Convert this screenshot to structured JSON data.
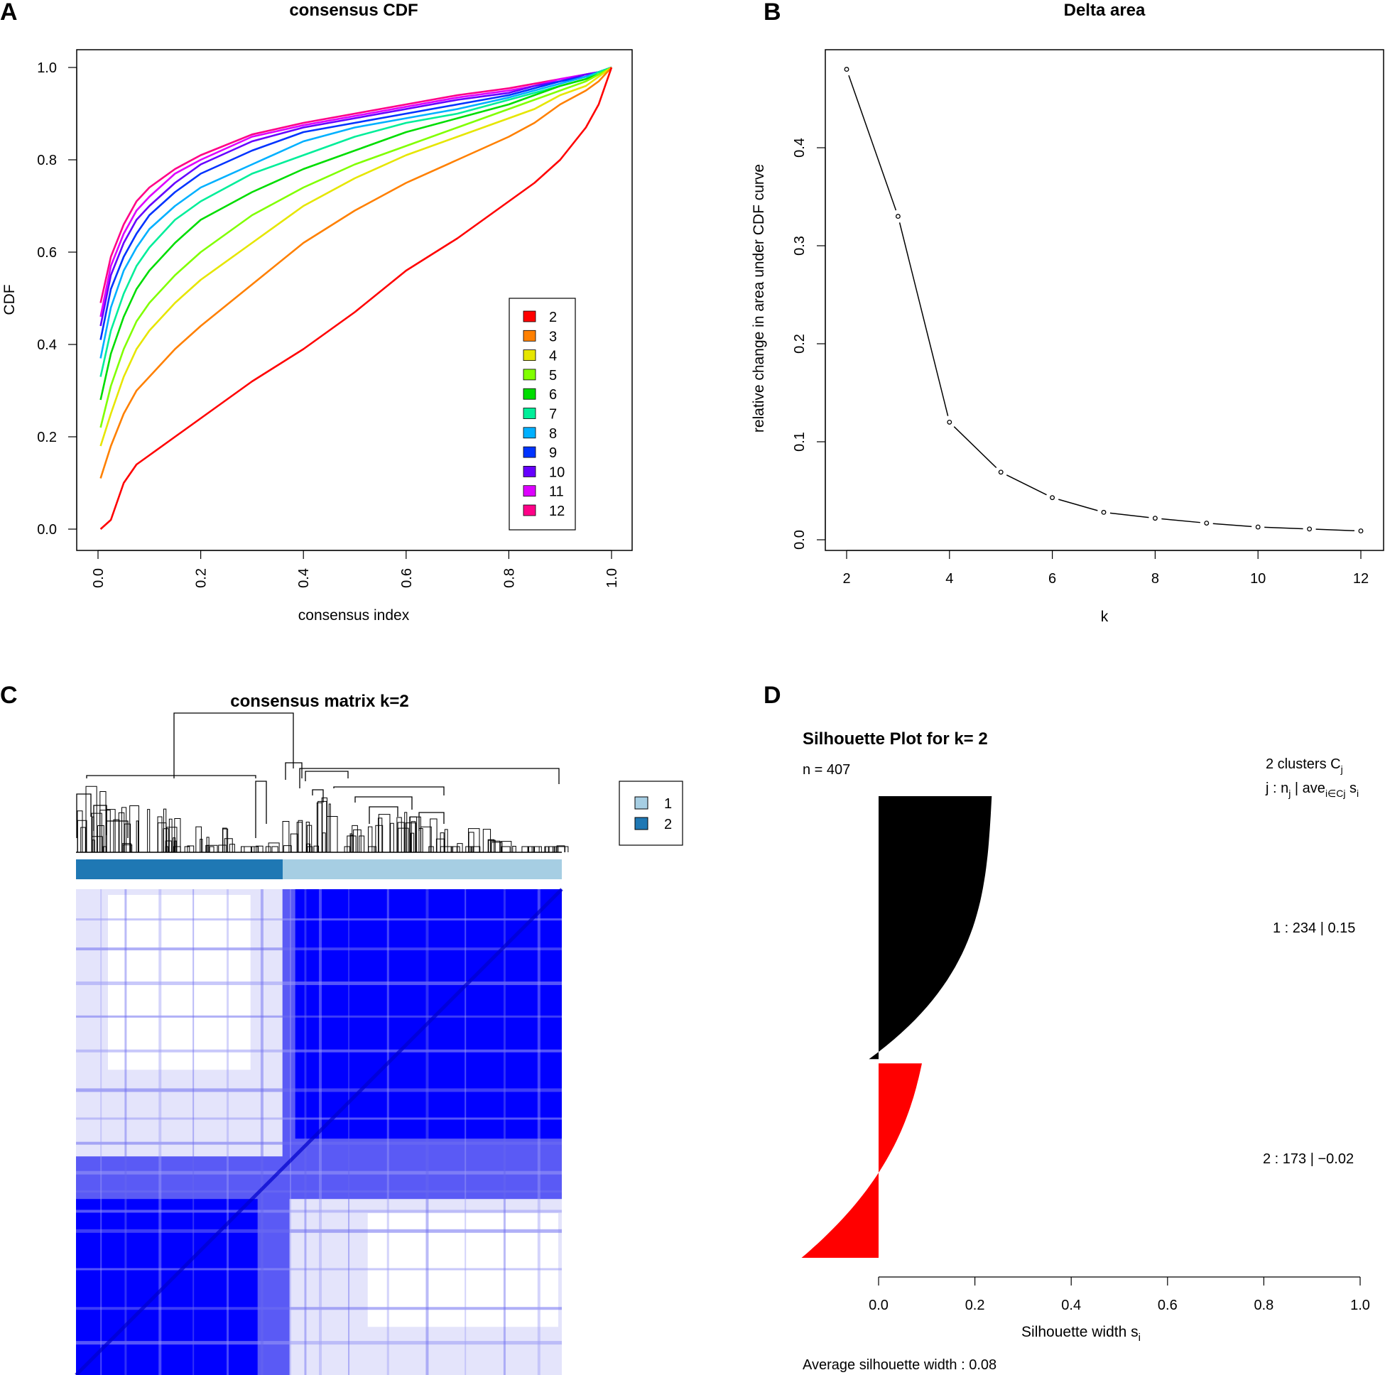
{
  "figure": {
    "panels": {
      "a": "A",
      "b": "B",
      "c": "C",
      "d": "D"
    }
  },
  "chart_data": [
    {
      "id": "consensus-cdf",
      "type": "line",
      "title": "consensus CDF",
      "xlabel": "consensus index",
      "ylabel": "CDF",
      "xlim": [
        0,
        1
      ],
      "ylim": [
        0,
        1
      ],
      "xticks": [
        "0.0",
        "0.2",
        "0.4",
        "0.6",
        "0.8",
        "1.0"
      ],
      "yticks": [
        "0.0",
        "0.2",
        "0.4",
        "0.6",
        "0.8",
        "1.0"
      ],
      "legend_position": "bottom-right",
      "x": [
        0,
        0.025,
        0.05,
        0.075,
        0.1,
        0.15,
        0.2,
        0.3,
        0.4,
        0.5,
        0.6,
        0.7,
        0.8,
        0.85,
        0.9,
        0.95,
        0.975,
        1.0
      ],
      "series": [
        {
          "name": "2",
          "color": "#ff0000",
          "values": [
            0.0,
            0.02,
            0.1,
            0.14,
            0.16,
            0.2,
            0.24,
            0.32,
            0.39,
            0.47,
            0.56,
            0.63,
            0.71,
            0.75,
            0.8,
            0.87,
            0.92,
            1.0
          ]
        },
        {
          "name": "3",
          "color": "#ff8000",
          "values": [
            0.11,
            0.18,
            0.25,
            0.3,
            0.33,
            0.39,
            0.44,
            0.53,
            0.62,
            0.69,
            0.75,
            0.8,
            0.85,
            0.88,
            0.92,
            0.95,
            0.97,
            1.0
          ]
        },
        {
          "name": "4",
          "color": "#e6e600",
          "values": [
            0.18,
            0.25,
            0.33,
            0.39,
            0.43,
            0.49,
            0.54,
            0.62,
            0.7,
            0.76,
            0.81,
            0.85,
            0.89,
            0.91,
            0.94,
            0.96,
            0.98,
            1.0
          ]
        },
        {
          "name": "5",
          "color": "#80ff00",
          "values": [
            0.22,
            0.31,
            0.39,
            0.45,
            0.49,
            0.55,
            0.6,
            0.68,
            0.74,
            0.79,
            0.83,
            0.87,
            0.91,
            0.93,
            0.95,
            0.97,
            0.985,
            1.0
          ]
        },
        {
          "name": "6",
          "color": "#00dd00",
          "values": [
            0.28,
            0.38,
            0.46,
            0.52,
            0.56,
            0.62,
            0.67,
            0.73,
            0.78,
            0.82,
            0.86,
            0.89,
            0.92,
            0.94,
            0.96,
            0.975,
            0.985,
            1.0
          ]
        },
        {
          "name": "7",
          "color": "#00ee99",
          "values": [
            0.33,
            0.43,
            0.51,
            0.57,
            0.61,
            0.67,
            0.71,
            0.77,
            0.81,
            0.85,
            0.88,
            0.9,
            0.93,
            0.945,
            0.96,
            0.975,
            0.99,
            1.0
          ]
        },
        {
          "name": "8",
          "color": "#00b0ff",
          "values": [
            0.37,
            0.48,
            0.56,
            0.61,
            0.65,
            0.7,
            0.74,
            0.79,
            0.84,
            0.87,
            0.89,
            0.91,
            0.935,
            0.95,
            0.965,
            0.98,
            0.99,
            1.0
          ]
        },
        {
          "name": "9",
          "color": "#0033ff",
          "values": [
            0.41,
            0.52,
            0.59,
            0.64,
            0.68,
            0.73,
            0.77,
            0.82,
            0.86,
            0.88,
            0.9,
            0.92,
            0.94,
            0.955,
            0.97,
            0.98,
            0.99,
            1.0
          ]
        },
        {
          "name": "10",
          "color": "#6600ff",
          "values": [
            0.44,
            0.55,
            0.62,
            0.67,
            0.7,
            0.75,
            0.79,
            0.84,
            0.87,
            0.89,
            0.91,
            0.93,
            0.945,
            0.96,
            0.97,
            0.985,
            0.99,
            1.0
          ]
        },
        {
          "name": "11",
          "color": "#dd00ff",
          "values": [
            0.46,
            0.57,
            0.64,
            0.69,
            0.72,
            0.77,
            0.8,
            0.85,
            0.875,
            0.895,
            0.915,
            0.935,
            0.95,
            0.96,
            0.975,
            0.985,
            0.99,
            1.0
          ]
        },
        {
          "name": "12",
          "color": "#ff0088",
          "values": [
            0.49,
            0.59,
            0.66,
            0.71,
            0.74,
            0.78,
            0.81,
            0.855,
            0.88,
            0.9,
            0.92,
            0.94,
            0.955,
            0.965,
            0.975,
            0.985,
            0.99,
            1.0
          ]
        }
      ]
    },
    {
      "id": "delta-area",
      "type": "line",
      "title": "Delta area",
      "xlabel": "k",
      "ylabel": "relative change in area under CDF curve",
      "xlim": [
        1.8,
        12.4
      ],
      "ylim": [
        -0.01,
        0.5
      ],
      "xticks": [
        "2",
        "4",
        "6",
        "8",
        "10",
        "12"
      ],
      "yticks": [
        "0.0",
        "0.1",
        "0.2",
        "0.3",
        "0.4"
      ],
      "x": [
        2,
        3,
        4,
        5,
        6,
        7,
        8,
        9,
        10,
        11,
        12
      ],
      "values": [
        0.48,
        0.33,
        0.12,
        0.069,
        0.043,
        0.028,
        0.022,
        0.017,
        0.013,
        0.011,
        0.009
      ]
    },
    {
      "id": "consensus-matrix",
      "type": "heatmap",
      "title": "consensus matrix k=2",
      "legend": [
        "1",
        "2"
      ],
      "legend_colors": [
        "#a6cee3",
        "#1f78b4"
      ],
      "cluster_fraction_col2": 0.425,
      "colors": {
        "high": "#0000ff",
        "mid": "#5a5af5",
        "low": "#e4e4fb",
        "zero": "#ffffff"
      }
    },
    {
      "id": "silhouette",
      "type": "bar",
      "title": "Silhouette Plot for k= 2",
      "n_label": "n = 407",
      "header_line1": "2  clusters  C",
      "header_line1_sub": "j",
      "header_line2_a": "j :  n",
      "header_line2_sub1": "j",
      "header_line2_b": " | ave",
      "header_line2_sub2": "i∈Cj",
      "header_line2_c": "  s",
      "header_line2_sub3": "i",
      "xlabel": "Silhouette width s",
      "xlabel_sub": "i",
      "xlim": [
        -0.16,
        1.0
      ],
      "xticks": [
        "0.0",
        "0.2",
        "0.4",
        "0.6",
        "0.8",
        "1.0"
      ],
      "average_label": "Average silhouette width :  0.08",
      "clusters": [
        {
          "label": "1 :   234  |  0.15",
          "n": 234,
          "ave": 0.15,
          "color": "#000000",
          "max": 0.235,
          "min": 0.01
        },
        {
          "label": "2 :   173  |  −0.02",
          "n": 173,
          "ave": -0.02,
          "color": "#ff0000",
          "max": 0.09,
          "min": -0.16
        }
      ]
    }
  ]
}
